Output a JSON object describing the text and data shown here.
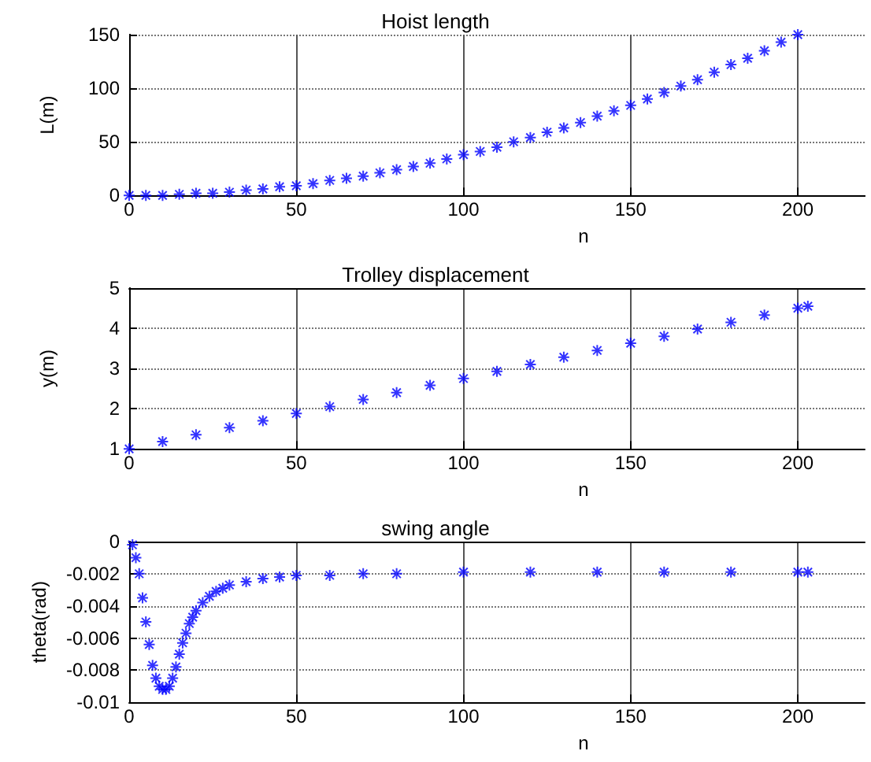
{
  "chart_data": [
    {
      "type": "scatter",
      "title": "Hoist length",
      "xlabel": "n",
      "ylabel": "L(m)",
      "marker": "cross",
      "grid": true,
      "xlim": [
        0,
        220
      ],
      "xticks": [
        0,
        50,
        100,
        150,
        200
      ],
      "ylim": [
        0,
        150
      ],
      "yticks": [
        0,
        50,
        100,
        150
      ],
      "x": [
        0,
        5,
        10,
        15,
        20,
        25,
        30,
        35,
        40,
        45,
        50,
        55,
        60,
        65,
        70,
        75,
        80,
        85,
        90,
        95,
        100,
        105,
        110,
        115,
        120,
        125,
        130,
        135,
        140,
        145,
        150,
        155,
        160,
        165,
        170,
        175,
        180,
        185,
        190,
        195,
        200
      ],
      "series": [
        {
          "color": "#0000ff",
          "values": [
            0,
            0,
            0,
            1,
            2,
            2,
            3,
            5,
            6,
            8,
            9,
            11,
            14,
            16,
            18,
            21,
            24,
            27,
            30,
            34,
            38,
            41,
            45,
            50,
            54,
            59,
            63,
            68,
            74,
            79,
            84,
            90,
            96,
            102,
            108,
            115,
            122,
            128,
            135,
            143,
            150
          ]
        }
      ]
    },
    {
      "type": "scatter",
      "title": "Trolley displacement",
      "xlabel": "n",
      "ylabel": "y(m)",
      "marker": "cross",
      "grid": true,
      "xlim": [
        0,
        220
      ],
      "xticks": [
        0,
        50,
        100,
        150,
        200
      ],
      "ylim": [
        1,
        5
      ],
      "yticks": [
        1,
        2,
        3,
        4,
        5
      ],
      "x": [
        0,
        10,
        20,
        30,
        40,
        50,
        60,
        70,
        80,
        90,
        100,
        110,
        120,
        130,
        140,
        150,
        160,
        170,
        180,
        190,
        200,
        203
      ],
      "series": [
        {
          "color": "#0000ff",
          "values": [
            1,
            1.18,
            1.35,
            1.53,
            1.7,
            1.88,
            2.05,
            2.23,
            2.4,
            2.58,
            2.75,
            2.93,
            3.1,
            3.28,
            3.45,
            3.63,
            3.8,
            3.98,
            4.15,
            4.33,
            4.5,
            4.55
          ]
        }
      ]
    },
    {
      "type": "scatter",
      "title": "swing angle",
      "xlabel": "n",
      "ylabel": "theta(rad)",
      "marker": "cross",
      "grid": true,
      "xlim": [
        0,
        220
      ],
      "xticks": [
        0,
        50,
        100,
        150,
        200
      ],
      "ylim": [
        -0.01,
        0
      ],
      "yticks": [
        -0.01,
        -0.008,
        -0.006,
        -0.004,
        -0.002,
        0
      ],
      "x": [
        1,
        2,
        3,
        4,
        5,
        6,
        7,
        8,
        9,
        10,
        11,
        12,
        13,
        14,
        15,
        16,
        17,
        18,
        19,
        20,
        22,
        24,
        26,
        28,
        30,
        35,
        40,
        45,
        50,
        60,
        70,
        80,
        100,
        120,
        140,
        160,
        180,
        200,
        203
      ],
      "series": [
        {
          "color": "#0000ff",
          "values": [
            -0.0002,
            -0.001,
            -0.002,
            -0.0035,
            -0.005,
            -0.0064,
            -0.0077,
            -0.0085,
            -0.009,
            -0.0092,
            -0.0092,
            -0.009,
            -0.0085,
            -0.0078,
            -0.007,
            -0.0063,
            -0.0057,
            -0.0051,
            -0.0047,
            -0.0043,
            -0.0038,
            -0.0034,
            -0.0031,
            -0.0029,
            -0.0027,
            -0.0025,
            -0.0023,
            -0.0022,
            -0.0021,
            -0.0021,
            -0.002,
            -0.002,
            -0.0019,
            -0.0019,
            -0.0019,
            -0.0019,
            -0.0019,
            -0.0019,
            -0.0019
          ]
        }
      ]
    }
  ]
}
